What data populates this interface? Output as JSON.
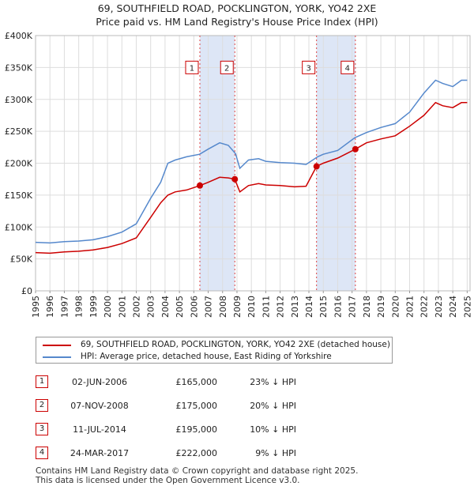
{
  "title": {
    "line1": "69, SOUTHFIELD ROAD, POCKLINGTON, YORK, YO42 2XE",
    "line2": "Price paid vs. HM Land Registry's House Price Index (HPI)"
  },
  "chart_data": {
    "type": "line",
    "xlim": [
      1995,
      2025.2
    ],
    "ylim": [
      0,
      400000
    ],
    "y_ticks": [
      {
        "value": 0,
        "label": "£0"
      },
      {
        "value": 50000,
        "label": "£50K"
      },
      {
        "value": 100000,
        "label": "£100K"
      },
      {
        "value": 150000,
        "label": "£150K"
      },
      {
        "value": 200000,
        "label": "£200K"
      },
      {
        "value": 250000,
        "label": "£250K"
      },
      {
        "value": 300000,
        "label": "£300K"
      },
      {
        "value": 350000,
        "label": "£350K"
      },
      {
        "value": 400000,
        "label": "£400K"
      }
    ],
    "x_ticks": [
      "1995",
      "1996",
      "1997",
      "1998",
      "1999",
      "2000",
      "2001",
      "2002",
      "2003",
      "2004",
      "2005",
      "2006",
      "2007",
      "2008",
      "2009",
      "2010",
      "2011",
      "2012",
      "2013",
      "2014",
      "2015",
      "2016",
      "2017",
      "2018",
      "2019",
      "2020",
      "2021",
      "2022",
      "2023",
      "2024",
      "2025"
    ],
    "grid": true,
    "series": [
      {
        "name": "HPI: Average price, detached house, East Riding of Yorkshire",
        "color": "#5588cc",
        "points": [
          [
            1995,
            76000
          ],
          [
            1996,
            75000
          ],
          [
            1997,
            77000
          ],
          [
            1998,
            78000
          ],
          [
            1999,
            80000
          ],
          [
            2000,
            85000
          ],
          [
            2001,
            92000
          ],
          [
            2002,
            105000
          ],
          [
            2003,
            145000
          ],
          [
            2003.7,
            170000
          ],
          [
            2004.2,
            200000
          ],
          [
            2004.7,
            205000
          ],
          [
            2005.5,
            210000
          ],
          [
            2006.4,
            214000
          ],
          [
            2007,
            222000
          ],
          [
            2007.8,
            232000
          ],
          [
            2008.4,
            228000
          ],
          [
            2008.9,
            215000
          ],
          [
            2009.2,
            192000
          ],
          [
            2009.8,
            205000
          ],
          [
            2010.5,
            207000
          ],
          [
            2011,
            203000
          ],
          [
            2012,
            201000
          ],
          [
            2013,
            200000
          ],
          [
            2013.8,
            198000
          ],
          [
            2014.6,
            210000
          ],
          [
            2015,
            214000
          ],
          [
            2016,
            220000
          ],
          [
            2017.2,
            240000
          ],
          [
            2018,
            248000
          ],
          [
            2019,
            256000
          ],
          [
            2020,
            262000
          ],
          [
            2021,
            280000
          ],
          [
            2022,
            310000
          ],
          [
            2022.8,
            330000
          ],
          [
            2023.3,
            325000
          ],
          [
            2024,
            320000
          ],
          [
            2024.6,
            330000
          ],
          [
            2025,
            330000
          ]
        ]
      },
      {
        "name": "69, SOUTHFIELD ROAD, POCKLINGTON, YORK, YO42 2XE (detached house)",
        "color": "#cc0000",
        "points": [
          [
            1995,
            60000
          ],
          [
            1996,
            59000
          ],
          [
            1997,
            61000
          ],
          [
            1998,
            62000
          ],
          [
            1999,
            64000
          ],
          [
            2000,
            68000
          ],
          [
            2001,
            74000
          ],
          [
            2002,
            83000
          ],
          [
            2003,
            115000
          ],
          [
            2003.7,
            138000
          ],
          [
            2004.2,
            150000
          ],
          [
            2004.7,
            155000
          ],
          [
            2005.5,
            158000
          ],
          [
            2006.42,
            165000
          ],
          [
            2007,
            170000
          ],
          [
            2007.8,
            178000
          ],
          [
            2008.4,
            177000
          ],
          [
            2008.85,
            175000
          ],
          [
            2009.2,
            155000
          ],
          [
            2009.8,
            165000
          ],
          [
            2010.5,
            168000
          ],
          [
            2011,
            166000
          ],
          [
            2012,
            165000
          ],
          [
            2013,
            163000
          ],
          [
            2013.8,
            164000
          ],
          [
            2014.53,
            195000
          ],
          [
            2015,
            200000
          ],
          [
            2016,
            208000
          ],
          [
            2017.23,
            222000
          ],
          [
            2018,
            232000
          ],
          [
            2019,
            238000
          ],
          [
            2020,
            243000
          ],
          [
            2021,
            258000
          ],
          [
            2022,
            275000
          ],
          [
            2022.8,
            295000
          ],
          [
            2023.3,
            290000
          ],
          [
            2024,
            287000
          ],
          [
            2024.6,
            295000
          ],
          [
            2025,
            295000
          ]
        ]
      }
    ],
    "sales": [
      {
        "n": "1",
        "x": 2006.42,
        "y": 165000
      },
      {
        "n": "2",
        "x": 2008.85,
        "y": 175000
      },
      {
        "n": "3",
        "x": 2014.53,
        "y": 195000
      },
      {
        "n": "4",
        "x": 2017.23,
        "y": 222000
      }
    ],
    "shaded_ranges": [
      [
        2006.42,
        2008.85
      ],
      [
        2014.53,
        2017.23
      ]
    ],
    "annotation_box_y": 350000
  },
  "legend": {
    "property_label": "69, SOUTHFIELD ROAD, POCKLINGTON, YORK, YO42 2XE (detached house)",
    "hpi_label": "HPI: Average price, detached house, East Riding of Yorkshire"
  },
  "transactions": [
    {
      "n": "1",
      "date": "02-JUN-2006",
      "price": "£165,000",
      "delta": "23% ↓ HPI"
    },
    {
      "n": "2",
      "date": "07-NOV-2008",
      "price": "£175,000",
      "delta": "20% ↓ HPI"
    },
    {
      "n": "3",
      "date": "11-JUL-2014",
      "price": "£195,000",
      "delta": "10% ↓ HPI"
    },
    {
      "n": "4",
      "date": "24-MAR-2017",
      "price": "£222,000",
      "delta": "9% ↓ HPI"
    }
  ],
  "footer": {
    "line1": "Contains HM Land Registry data © Crown copyright and database right 2025.",
    "line2": "This data is licensed under the Open Government Licence v3.0."
  }
}
